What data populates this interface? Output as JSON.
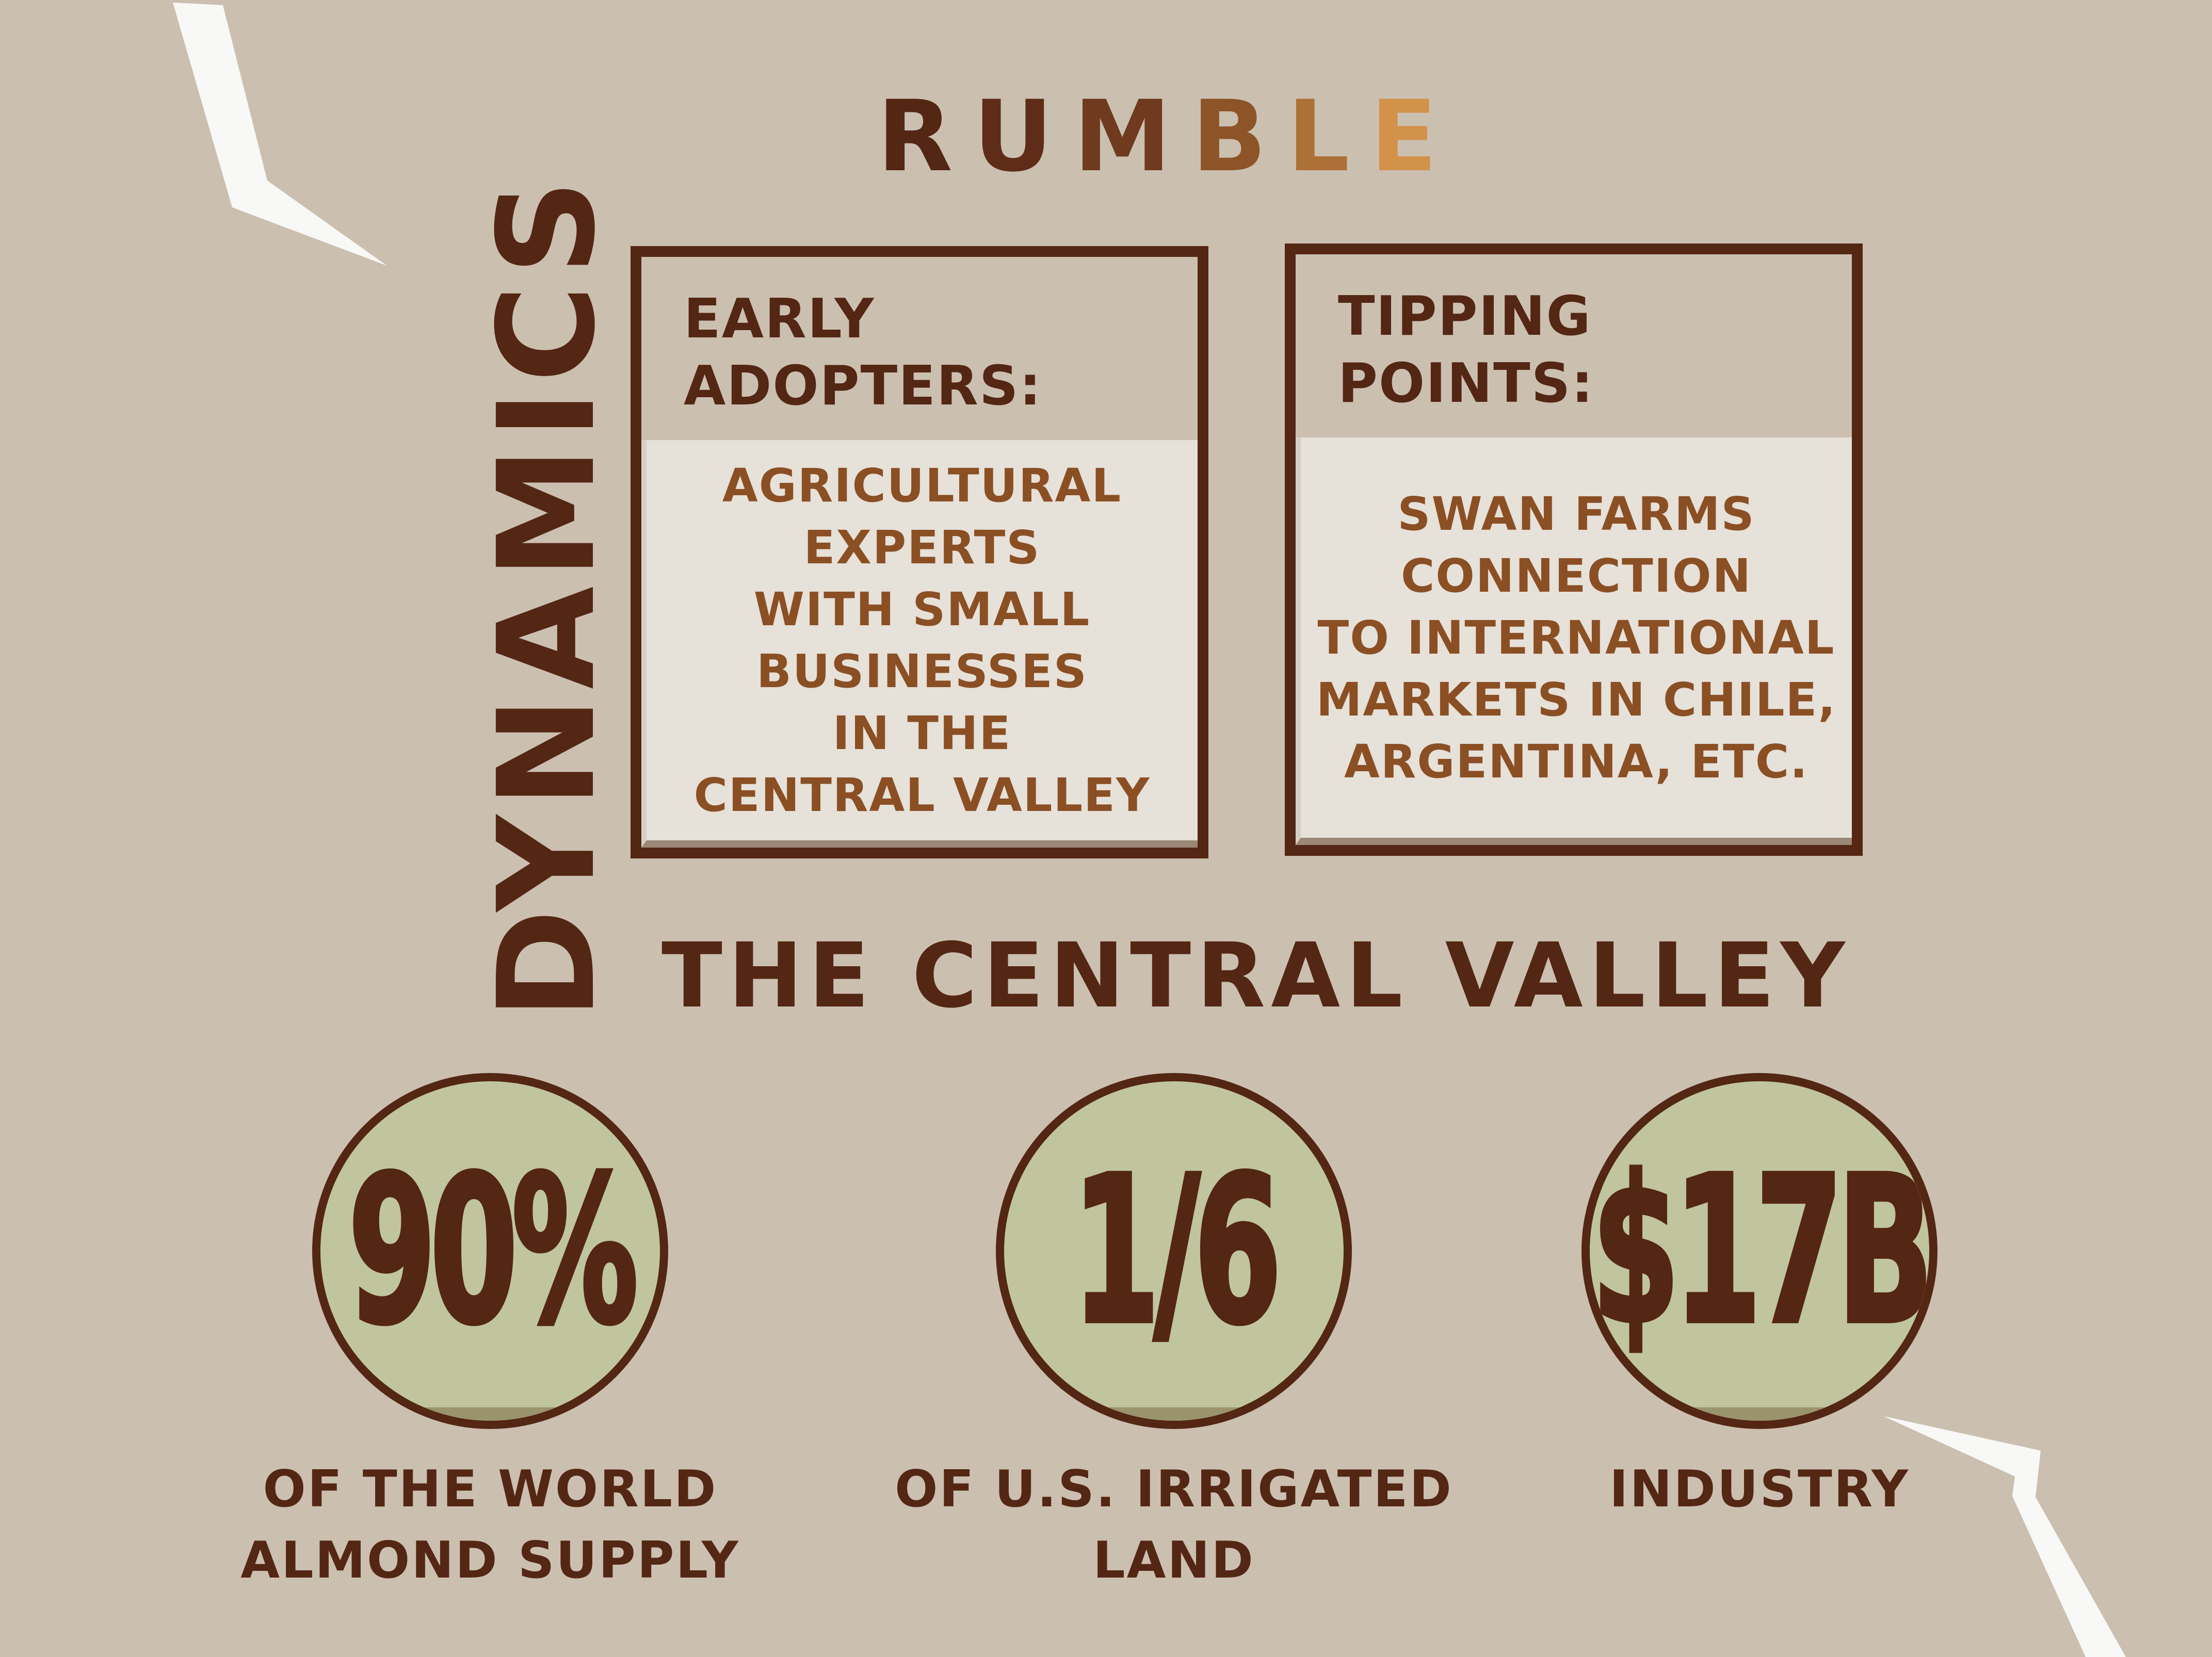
{
  "brand": {
    "letters": [
      {
        "char": "R",
        "color": "#542614"
      },
      {
        "char": "U",
        "color": "#5e2c17"
      },
      {
        "char": "M",
        "color": "#6f3a1e"
      },
      {
        "char": "B",
        "color": "#8d5428"
      },
      {
        "char": "L",
        "color": "#ad7036"
      },
      {
        "char": "E",
        "color": "#d3924a"
      }
    ]
  },
  "side_title": "DYNAMICS",
  "cards": [
    {
      "heading": [
        "EARLY",
        "ADOPTERS:"
      ],
      "body": [
        "AGRICULTURAL",
        "EXPERTS",
        "WITH SMALL",
        "BUSINESSES",
        "IN THE",
        "CENTRAL VALLEY"
      ]
    },
    {
      "heading": [
        "TIPPING",
        "POINTS:"
      ],
      "body": [
        "SWAN FARMS",
        "CONNECTION",
        "TO INTERNATIONAL",
        "MARKETS IN CHILE,",
        "ARGENTINA, ETC."
      ]
    }
  ],
  "region_title": "THE CENTRAL VALLEY",
  "stats": [
    {
      "value": "90%",
      "label": [
        "OF THE WORLD",
        "ALMOND SUPPLY"
      ]
    },
    {
      "value": "1/6",
      "label": [
        "OF U.S. IRRIGATED",
        "LAND"
      ]
    },
    {
      "value": "$17B",
      "label": [
        "INDUSTRY"
      ]
    }
  ],
  "colors": {
    "background": "#cbbfb0",
    "dark_brown": "#542614",
    "panel": "#e6e1d9",
    "panel_text": "#8b4f24",
    "badge_fill": "#c0c59d",
    "lightning": "#f8f8f6"
  },
  "icons": [
    "lightning-bolt-icon"
  ]
}
